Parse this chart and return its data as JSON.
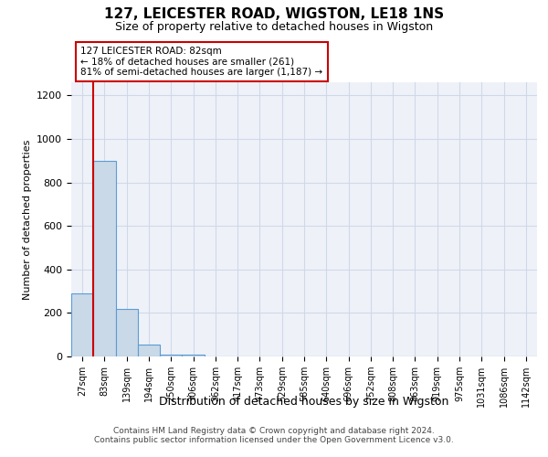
{
  "title": "127, LEICESTER ROAD, WIGSTON, LE18 1NS",
  "subtitle": "Size of property relative to detached houses in Wigston",
  "xlabel": "Distribution of detached houses by size in Wigston",
  "ylabel": "Number of detached properties",
  "categories": [
    "27sqm",
    "83sqm",
    "139sqm",
    "194sqm",
    "250sqm",
    "306sqm",
    "362sqm",
    "417sqm",
    "473sqm",
    "529sqm",
    "585sqm",
    "640sqm",
    "696sqm",
    "752sqm",
    "808sqm",
    "863sqm",
    "919sqm",
    "975sqm",
    "1031sqm",
    "1086sqm",
    "1142sqm"
  ],
  "values": [
    290,
    900,
    220,
    55,
    10,
    10,
    0,
    0,
    0,
    0,
    0,
    0,
    0,
    0,
    0,
    0,
    0,
    0,
    0,
    0,
    0
  ],
  "bar_color": "#c9d9e8",
  "bar_edge_color": "#5b9bd5",
  "property_line_color": "#cc0000",
  "annotation_text": "127 LEICESTER ROAD: 82sqm\n← 18% of detached houses are smaller (261)\n81% of semi-detached houses are larger (1,187) →",
  "annotation_box_color": "#cc0000",
  "ylim": [
    0,
    1260
  ],
  "yticks": [
    0,
    200,
    400,
    600,
    800,
    1000,
    1200
  ],
  "grid_color": "#d0d8e8",
  "background_color": "#eef2f8",
  "footer_line1": "Contains HM Land Registry data © Crown copyright and database right 2024.",
  "footer_line2": "Contains public sector information licensed under the Open Government Licence v3.0."
}
